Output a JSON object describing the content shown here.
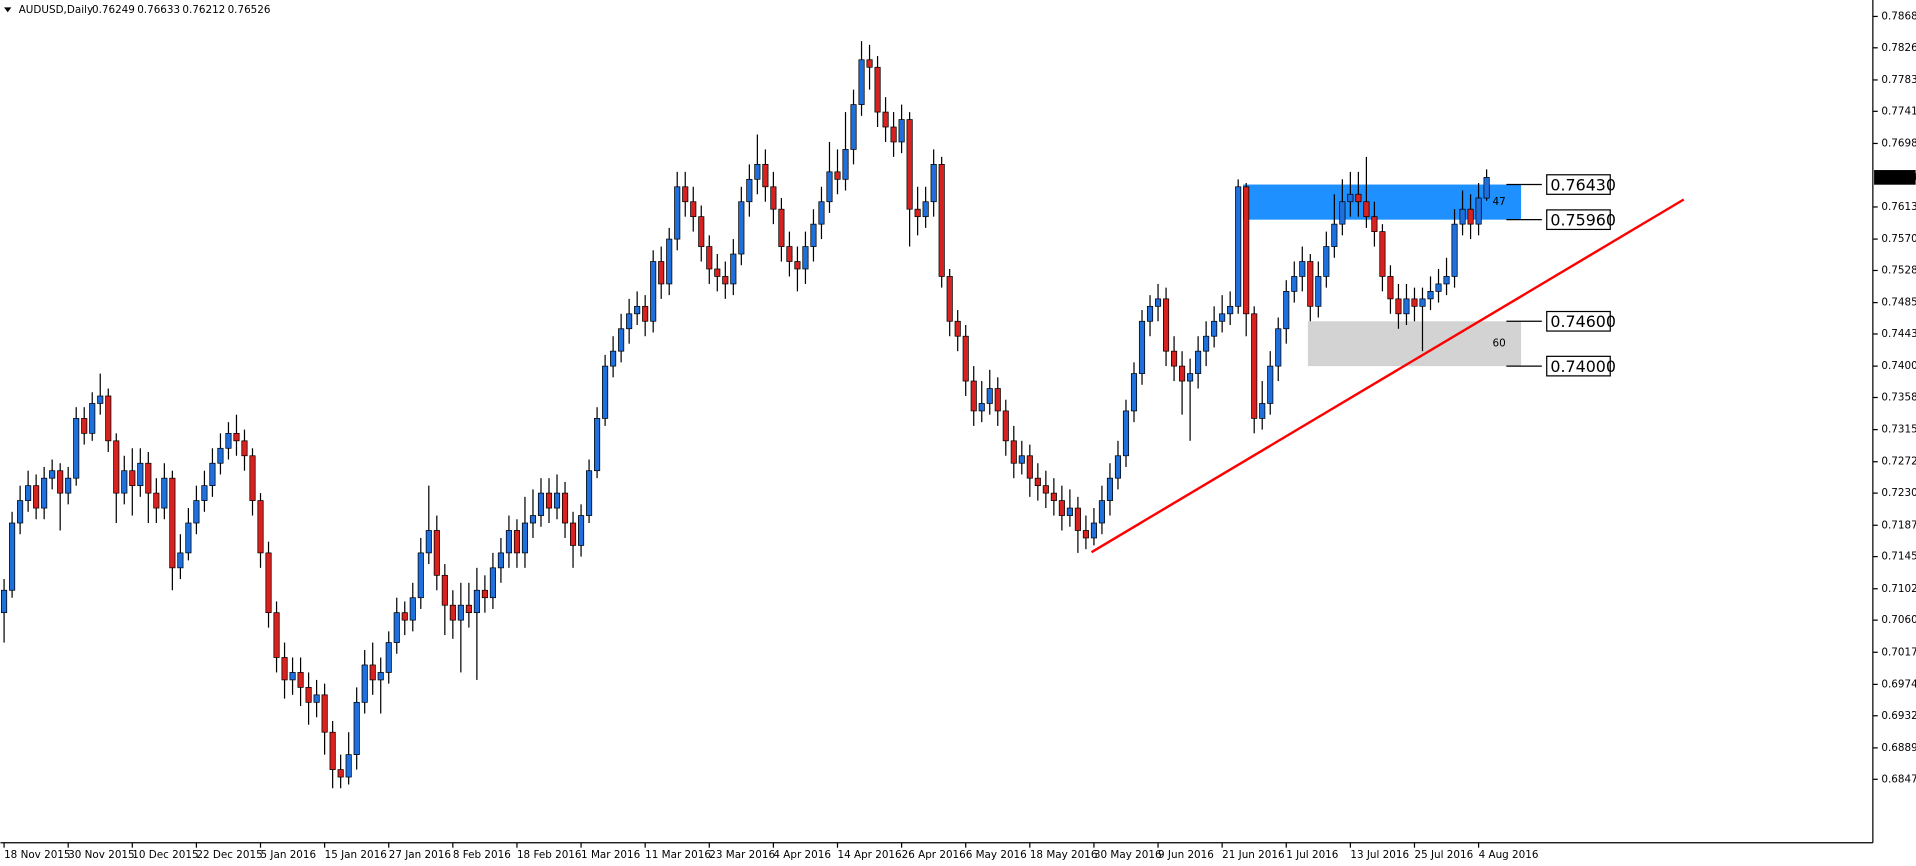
{
  "chart_data": {
    "type": "candlestick",
    "title": "AUDUSD,Daily",
    "header_values": [
      "0.76249",
      "0.76633",
      "0.76212",
      "0.76526"
    ],
    "up_color": "#1f6fdc",
    "down_color": "#d8221f",
    "categories": [
      "18 Nov 2015",
      null,
      null,
      null,
      null,
      null,
      null,
      null,
      "30 Nov 2015",
      null,
      null,
      null,
      null,
      null,
      null,
      null,
      "10 Dec 2015",
      null,
      null,
      null,
      null,
      null,
      null,
      null,
      "22 Dec 2015",
      null,
      null,
      null,
      null,
      null,
      null,
      null,
      "5 Jan 2016",
      null,
      null,
      null,
      null,
      null,
      null,
      null,
      "15 Jan 2016",
      null,
      null,
      null,
      null,
      null,
      null,
      null,
      "27 Jan 2016",
      null,
      null,
      null,
      null,
      null,
      null,
      null,
      "8 Feb 2016",
      null,
      null,
      null,
      null,
      null,
      null,
      null,
      "18 Feb 2016",
      null,
      null,
      null,
      null,
      null,
      null,
      null,
      "1 Mar 2016",
      null,
      null,
      null,
      null,
      null,
      null,
      null,
      "11 Mar 2016",
      null,
      null,
      null,
      null,
      null,
      null,
      null,
      "23 Mar 2016",
      null,
      null,
      null,
      null,
      null,
      null,
      null,
      "4 Apr 2016",
      null,
      null,
      null,
      null,
      null,
      null,
      null,
      "14 Apr 2016",
      null,
      null,
      null,
      null,
      null,
      null,
      null,
      "26 Apr 2016",
      null,
      null,
      null,
      null,
      null,
      null,
      null,
      "6 May 2016",
      null,
      null,
      null,
      null,
      null,
      null,
      null,
      "18 May 2016",
      null,
      null,
      null,
      null,
      null,
      null,
      null,
      "30 May 2016",
      null,
      null,
      null,
      null,
      null,
      null,
      null,
      "9 Jun 2016",
      null,
      null,
      null,
      null,
      null,
      null,
      null,
      "21 Jun 2016",
      null,
      null,
      null,
      null,
      null,
      null,
      null,
      "1 Jul 2016",
      null,
      null,
      null,
      null,
      null,
      null,
      null,
      "13 Jul 2016",
      null,
      null,
      null,
      null,
      null,
      null,
      null,
      "25 Jul 2016",
      null,
      null,
      null,
      null,
      null,
      null,
      null,
      "4 Aug 2016",
      null
    ],
    "open": [
      0.707,
      0.71,
      0.719,
      0.722,
      0.724,
      0.721,
      0.725,
      0.726,
      0.723,
      0.725,
      0.733,
      0.731,
      0.735,
      0.736,
      0.73,
      0.723,
      0.726,
      0.724,
      0.727,
      0.723,
      0.721,
      0.725,
      0.713,
      0.715,
      0.719,
      0.722,
      0.724,
      0.727,
      0.729,
      0.731,
      0.73,
      0.728,
      0.722,
      0.715,
      0.707,
      0.701,
      0.698,
      0.699,
      0.697,
      0.695,
      0.696,
      0.691,
      0.686,
      0.685,
      0.688,
      0.695,
      0.7,
      0.698,
      0.699,
      0.703,
      0.707,
      0.706,
      0.709,
      0.715,
      0.718,
      0.712,
      0.708,
      0.706,
      0.708,
      0.707,
      0.71,
      0.709,
      0.713,
      0.715,
      0.718,
      0.715,
      0.719,
      0.72,
      0.723,
      0.721,
      0.723,
      0.719,
      0.716,
      0.72,
      0.726,
      0.733,
      0.74,
      0.742,
      0.745,
      0.747,
      0.748,
      0.746,
      0.754,
      0.751,
      0.757,
      0.764,
      0.762,
      0.76,
      0.756,
      0.753,
      0.752,
      0.751,
      0.755,
      0.762,
      0.765,
      0.767,
      0.764,
      0.761,
      0.756,
      0.754,
      0.753,
      0.756,
      0.759,
      0.762,
      0.766,
      0.765,
      0.769,
      0.775,
      0.781,
      0.78,
      0.774,
      0.772,
      0.77,
      0.773,
      0.761,
      0.76,
      0.762,
      0.767,
      0.752,
      0.746,
      0.744,
      0.738,
      0.734,
      0.735,
      0.737,
      0.734,
      0.73,
      0.727,
      0.728,
      0.725,
      0.724,
      0.723,
      0.722,
      0.72,
      0.721,
      0.718,
      0.717,
      0.719,
      0.722,
      0.725,
      0.728,
      0.734,
      0.739,
      0.746,
      0.748,
      0.749,
      0.742,
      0.74,
      0.738,
      0.739,
      0.742,
      0.744,
      0.746,
      0.747,
      0.748,
      0.764,
      0.747,
      0.733,
      0.735,
      0.74,
      0.745,
      0.75,
      0.752,
      0.754,
      0.748,
      0.752,
      0.756,
      0.759,
      0.762,
      0.763,
      0.762,
      0.76,
      0.758,
      0.752,
      0.749,
      0.747,
      0.749,
      0.748,
      0.749,
      0.75,
      0.751,
      0.752,
      0.759,
      0.761,
      0.759,
      0.76249
    ],
    "high": [
      0.7115,
      0.7205,
      0.724,
      0.726,
      0.7255,
      0.7265,
      0.7275,
      0.727,
      0.7265,
      0.7345,
      0.7345,
      0.7365,
      0.739,
      0.737,
      0.731,
      0.728,
      0.729,
      0.729,
      0.7285,
      0.725,
      0.727,
      0.726,
      0.7175,
      0.721,
      0.724,
      0.726,
      0.729,
      0.731,
      0.7325,
      0.7335,
      0.7315,
      0.729,
      0.723,
      0.7165,
      0.7085,
      0.703,
      0.701,
      0.701,
      0.699,
      0.698,
      0.6975,
      0.6925,
      0.688,
      0.691,
      0.697,
      0.702,
      0.703,
      0.701,
      0.7045,
      0.709,
      0.7085,
      0.711,
      0.717,
      0.724,
      0.72,
      0.7135,
      0.71,
      0.711,
      0.711,
      0.713,
      0.712,
      0.715,
      0.717,
      0.72,
      0.7195,
      0.7225,
      0.7235,
      0.725,
      0.725,
      0.7255,
      0.7245,
      0.7205,
      0.7215,
      0.7275,
      0.7345,
      0.7415,
      0.744,
      0.747,
      0.749,
      0.75,
      0.7495,
      0.7555,
      0.756,
      0.7585,
      0.766,
      0.766,
      0.764,
      0.7615,
      0.7575,
      0.755,
      0.754,
      0.757,
      0.764,
      0.767,
      0.771,
      0.769,
      0.766,
      0.7625,
      0.758,
      0.756,
      0.758,
      0.761,
      0.764,
      0.77,
      0.769,
      0.774,
      0.777,
      0.7835,
      0.783,
      0.7815,
      0.776,
      0.774,
      0.775,
      0.774,
      0.764,
      0.764,
      0.769,
      0.768,
      0.753,
      0.7475,
      0.7455,
      0.74,
      0.738,
      0.7395,
      0.7385,
      0.7355,
      0.732,
      0.73,
      0.7295,
      0.727,
      0.726,
      0.725,
      0.724,
      0.7235,
      0.7225,
      0.72,
      0.721,
      0.724,
      0.727,
      0.73,
      0.7355,
      0.7405,
      0.7475,
      0.7495,
      0.751,
      0.7505,
      0.744,
      0.742,
      0.741,
      0.744,
      0.746,
      0.748,
      0.7495,
      0.75,
      0.765,
      0.7645,
      0.748,
      0.738,
      0.742,
      0.7465,
      0.7515,
      0.754,
      0.756,
      0.755,
      0.754,
      0.758,
      0.763,
      0.765,
      0.766,
      0.766,
      0.768,
      0.762,
      0.759,
      0.7535,
      0.751,
      0.751,
      0.7505,
      0.7505,
      0.752,
      0.753,
      0.7545,
      0.761,
      0.7635,
      0.763,
      0.7645,
      0.76633
    ],
    "low": [
      0.703,
      0.709,
      0.7175,
      0.7205,
      0.7195,
      0.7195,
      0.7235,
      0.718,
      0.7215,
      0.724,
      0.7295,
      0.73,
      0.7335,
      0.7285,
      0.719,
      0.7215,
      0.72,
      0.7225,
      0.719,
      0.719,
      0.7195,
      0.71,
      0.7115,
      0.714,
      0.7175,
      0.7205,
      0.7225,
      0.7255,
      0.7275,
      0.728,
      0.726,
      0.72,
      0.713,
      0.705,
      0.699,
      0.6955,
      0.696,
      0.6945,
      0.692,
      0.693,
      0.688,
      0.6835,
      0.6835,
      0.684,
      0.686,
      0.6935,
      0.696,
      0.6935,
      0.6975,
      0.7015,
      0.704,
      0.7045,
      0.7075,
      0.7135,
      0.71,
      0.704,
      0.7035,
      0.699,
      0.705,
      0.698,
      0.707,
      0.7075,
      0.711,
      0.713,
      0.713,
      0.713,
      0.717,
      0.7185,
      0.719,
      0.7195,
      0.717,
      0.713,
      0.7145,
      0.719,
      0.725,
      0.732,
      0.7385,
      0.7405,
      0.743,
      0.7455,
      0.744,
      0.7445,
      0.749,
      0.7495,
      0.7555,
      0.76,
      0.758,
      0.754,
      0.751,
      0.75,
      0.749,
      0.7495,
      0.7535,
      0.76,
      0.763,
      0.762,
      0.759,
      0.754,
      0.752,
      0.75,
      0.751,
      0.754,
      0.757,
      0.7605,
      0.763,
      0.7635,
      0.767,
      0.7735,
      0.777,
      0.772,
      0.77,
      0.768,
      0.7685,
      0.756,
      0.7575,
      0.7585,
      0.76,
      0.7505,
      0.744,
      0.742,
      0.736,
      0.732,
      0.7325,
      0.7335,
      0.732,
      0.728,
      0.725,
      0.7255,
      0.7225,
      0.722,
      0.721,
      0.72,
      0.718,
      0.7185,
      0.715,
      0.7155,
      0.716,
      0.7175,
      0.72,
      0.7235,
      0.7265,
      0.7325,
      0.7375,
      0.744,
      0.746,
      0.74,
      0.738,
      0.7335,
      0.73,
      0.737,
      0.74,
      0.7425,
      0.7445,
      0.7455,
      0.747,
      0.744,
      0.731,
      0.7315,
      0.7335,
      0.738,
      0.743,
      0.7485,
      0.75,
      0.746,
      0.7465,
      0.7505,
      0.7545,
      0.7575,
      0.76,
      0.76,
      0.7585,
      0.756,
      0.75,
      0.747,
      0.745,
      0.7455,
      0.746,
      0.742,
      0.7475,
      0.7485,
      0.7495,
      0.7505,
      0.7575,
      0.757,
      0.7575,
      0.76212
    ],
    "close": [
      0.71,
      0.719,
      0.722,
      0.724,
      0.721,
      0.725,
      0.726,
      0.723,
      0.725,
      0.733,
      0.731,
      0.735,
      0.736,
      0.73,
      0.723,
      0.726,
      0.724,
      0.727,
      0.723,
      0.721,
      0.725,
      0.713,
      0.715,
      0.719,
      0.722,
      0.724,
      0.727,
      0.729,
      0.731,
      0.73,
      0.728,
      0.722,
      0.715,
      0.707,
      0.701,
      0.698,
      0.699,
      0.697,
      0.695,
      0.696,
      0.691,
      0.686,
      0.685,
      0.688,
      0.695,
      0.7,
      0.698,
      0.699,
      0.703,
      0.707,
      0.706,
      0.709,
      0.715,
      0.718,
      0.712,
      0.708,
      0.706,
      0.708,
      0.707,
      0.71,
      0.709,
      0.713,
      0.715,
      0.718,
      0.715,
      0.719,
      0.72,
      0.723,
      0.721,
      0.723,
      0.719,
      0.716,
      0.72,
      0.726,
      0.733,
      0.74,
      0.742,
      0.745,
      0.747,
      0.748,
      0.746,
      0.754,
      0.751,
      0.757,
      0.764,
      0.762,
      0.76,
      0.756,
      0.753,
      0.752,
      0.751,
      0.755,
      0.762,
      0.765,
      0.767,
      0.764,
      0.761,
      0.756,
      0.754,
      0.753,
      0.756,
      0.759,
      0.762,
      0.766,
      0.765,
      0.769,
      0.775,
      0.781,
      0.78,
      0.774,
      0.772,
      0.77,
      0.773,
      0.761,
      0.76,
      0.762,
      0.767,
      0.752,
      0.746,
      0.744,
      0.738,
      0.734,
      0.735,
      0.737,
      0.734,
      0.73,
      0.727,
      0.728,
      0.725,
      0.724,
      0.723,
      0.722,
      0.72,
      0.721,
      0.718,
      0.717,
      0.719,
      0.722,
      0.725,
      0.728,
      0.734,
      0.739,
      0.746,
      0.748,
      0.749,
      0.742,
      0.74,
      0.738,
      0.739,
      0.742,
      0.744,
      0.746,
      0.747,
      0.748,
      0.764,
      0.747,
      0.733,
      0.735,
      0.74,
      0.745,
      0.75,
      0.752,
      0.754,
      0.748,
      0.752,
      0.756,
      0.759,
      0.762,
      0.763,
      0.762,
      0.76,
      0.758,
      0.752,
      0.749,
      0.747,
      0.749,
      0.748,
      0.749,
      0.75,
      0.751,
      0.752,
      0.759,
      0.761,
      0.759,
      0.7625,
      0.76526
    ],
    "xlim": [
      -0.46,
      233.2
    ],
    "ylim": [
      0.6762,
      0.789
    ],
    "yticks": [
      {
        "value": 0.7868,
        "label": "0.78680"
      },
      {
        "value": 0.7826,
        "label": "0.78260"
      },
      {
        "value": 0.7783,
        "label": "0.77830"
      },
      {
        "value": 0.7741,
        "label": "0.77410"
      },
      {
        "value": 0.7698,
        "label": "0.76980"
      },
      {
        "value": 0.7613,
        "label": "0.76130"
      },
      {
        "value": 0.757,
        "label": "0.75700"
      },
      {
        "value": 0.7528,
        "label": "0.75280"
      },
      {
        "value": 0.7485,
        "label": "0.74850"
      },
      {
        "value": 0.7443,
        "label": "0.74430"
      },
      {
        "value": 0.74,
        "label": "0.74000"
      },
      {
        "value": 0.7358,
        "label": "0.73580"
      },
      {
        "value": 0.7315,
        "label": "0.73150"
      },
      {
        "value": 0.7272,
        "label": "0.72720"
      },
      {
        "value": 0.723,
        "label": "0.72300"
      },
      {
        "value": 0.7187,
        "label": "0.71870"
      },
      {
        "value": 0.7145,
        "label": "0.71450"
      },
      {
        "value": 0.7102,
        "label": "0.71020"
      },
      {
        "value": 0.706,
        "label": "0.70600"
      },
      {
        "value": 0.7017,
        "label": "0.70170"
      },
      {
        "value": 0.6974,
        "label": "0.69740"
      },
      {
        "value": 0.6932,
        "label": "0.69320"
      },
      {
        "value": 0.6889,
        "label": "0.68890"
      },
      {
        "value": 0.6847,
        "label": "0.68470"
      }
    ],
    "zones": [
      {
        "top": 0.7643,
        "bottom": 0.7596,
        "top_label": "0.76430",
        "bottom_label": "0.75960",
        "text": "47",
        "color": "#1e90ff",
        "from_bar": 154.6,
        "to_bar": 189.3
      },
      {
        "top": 0.746,
        "bottom": 0.74,
        "top_label": "0.74600",
        "bottom_label": "0.74000",
        "text": "60",
        "color": "#d3d3d3",
        "from_bar": 162.7,
        "to_bar": 189.3
      }
    ],
    "trendline": {
      "from_bar": 135.7,
      "from_price": 0.7151,
      "to_bar": 209.6,
      "to_price": 0.7623,
      "color": "#ff0000"
    }
  }
}
